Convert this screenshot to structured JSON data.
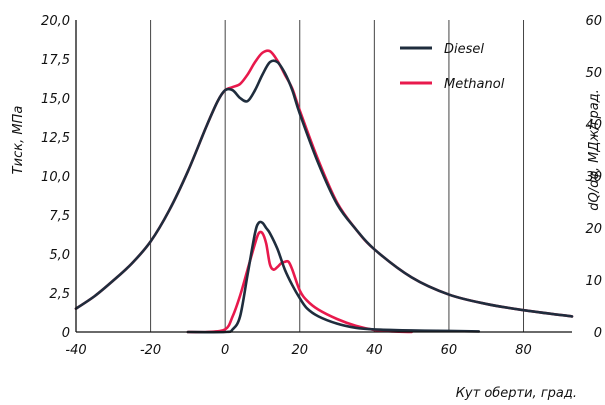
{
  "chart_data": {
    "type": "line",
    "xlabel": "Кут оберти, град.",
    "ylabel": "Тиск, МПа",
    "y2label": "dQ/dφ, МДж/град.",
    "xlim": [
      -40,
      93
    ],
    "ylim": [
      0,
      20
    ],
    "y2lim": [
      0,
      60
    ],
    "x_ticks": [
      "-40",
      "-20",
      "0",
      "20",
      "40",
      "60",
      "80"
    ],
    "y_ticks": [
      "0",
      "2,5",
      "5,0",
      "7,5",
      "10,0",
      "12,5",
      "15,0",
      "17,5",
      "20,0"
    ],
    "y2_ticks": [
      "0",
      "10",
      "20",
      "30",
      "40",
      "50",
      "60"
    ],
    "grid": "vertical",
    "legend_position": "top-right",
    "colors": {
      "Diesel": "#1f2d3d",
      "Methanol": "#e8194c"
    },
    "series": [
      {
        "name": "Diesel",
        "kind": "pressure",
        "x": [
          -40,
          -35,
          -30,
          -25,
          -20,
          -15,
          -10,
          -5,
          -2,
          0,
          2,
          4,
          6,
          8,
          10,
          12,
          14,
          16,
          18,
          20,
          25,
          30,
          35,
          40,
          50,
          60,
          70,
          80,
          93
        ],
        "y": [
          1.5,
          2.3,
          3.3,
          4.4,
          5.8,
          7.8,
          10.3,
          13.2,
          14.8,
          15.5,
          15.5,
          15.0,
          14.8,
          15.5,
          16.5,
          17.3,
          17.3,
          16.6,
          15.5,
          14.0,
          10.8,
          8.2,
          6.6,
          5.3,
          3.5,
          2.4,
          1.8,
          1.4,
          1.0
        ]
      },
      {
        "name": "Methanol",
        "kind": "pressure",
        "x": [
          -40,
          -35,
          -30,
          -25,
          -20,
          -15,
          -10,
          -5,
          -2,
          0,
          2,
          4,
          6,
          8,
          10,
          12,
          14,
          16,
          18,
          20,
          25,
          30,
          35,
          40,
          50,
          60,
          70,
          80,
          93
        ],
        "y": [
          1.5,
          2.3,
          3.3,
          4.4,
          5.8,
          7.8,
          10.3,
          13.2,
          14.8,
          15.5,
          15.7,
          15.9,
          16.5,
          17.3,
          17.9,
          18.0,
          17.4,
          16.5,
          15.6,
          14.2,
          11.0,
          8.3,
          6.6,
          5.3,
          3.5,
          2.4,
          1.8,
          1.4,
          1.0
        ]
      },
      {
        "name": "Diesel",
        "kind": "heat_release",
        "x": [
          -10,
          0,
          2,
          4,
          6,
          8,
          9,
          10,
          11,
          12,
          14,
          16,
          18,
          20,
          22,
          25,
          30,
          35,
          40,
          50,
          60,
          68
        ],
        "y": [
          0,
          0,
          0.5,
          3,
          11,
          19,
          21,
          21,
          20,
          19,
          16,
          12,
          9,
          6.5,
          4.5,
          3,
          1.6,
          0.8,
          0.5,
          0.3,
          0.2,
          0.1
        ]
      },
      {
        "name": "Methanol",
        "kind": "heat_release",
        "x": [
          -10,
          -5,
          0,
          2,
          4,
          6,
          8,
          9,
          10,
          11,
          12,
          13,
          14,
          15,
          16,
          17,
          18,
          20,
          22,
          25,
          30,
          35,
          40,
          45,
          50
        ],
        "y": [
          0,
          0,
          0.5,
          3,
          7,
          12,
          17,
          19,
          19,
          17,
          13,
          12,
          12.5,
          13.2,
          13.5,
          13.5,
          12,
          8,
          6,
          4.3,
          2.5,
          1.2,
          0.4,
          0.1,
          0
        ]
      }
    ]
  }
}
